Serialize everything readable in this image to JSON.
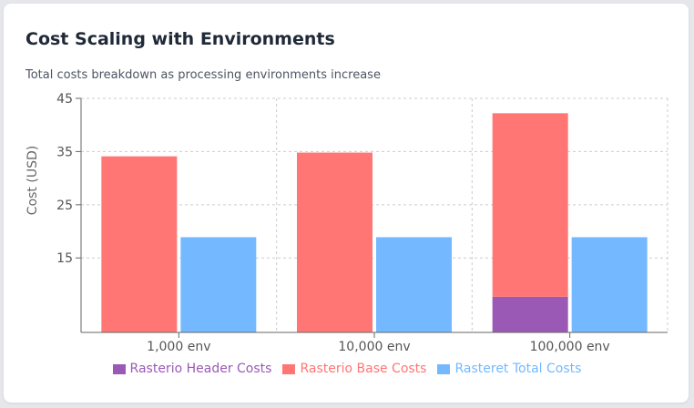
{
  "title": "Cost Scaling with Environments",
  "subtitle": "Total costs breakdown as processing environments increase",
  "chart_data": {
    "type": "bar",
    "categories": [
      "1,000 env",
      "10,000 env",
      "100,000 env"
    ],
    "series": [
      {
        "name": "Rasterio Header Costs",
        "color": "#9b59b6",
        "stack": "rasterio",
        "values": [
          0.0,
          0.7,
          7.7
        ]
      },
      {
        "name": "Rasterio Base Costs",
        "color": "#ff7675",
        "stack": "rasterio",
        "values": [
          34.1,
          34.1,
          34.5
        ]
      },
      {
        "name": "Rasteret Total Costs",
        "color": "#74b9ff",
        "stack": "rasteret",
        "values": [
          18.9,
          18.9,
          18.9
        ]
      }
    ],
    "ylabel": "Cost (USD)",
    "xlabel": "",
    "ylim": [
      1,
      45
    ],
    "yticks": [
      15,
      25,
      35,
      45
    ],
    "grid": true,
    "legend": "bottom"
  }
}
